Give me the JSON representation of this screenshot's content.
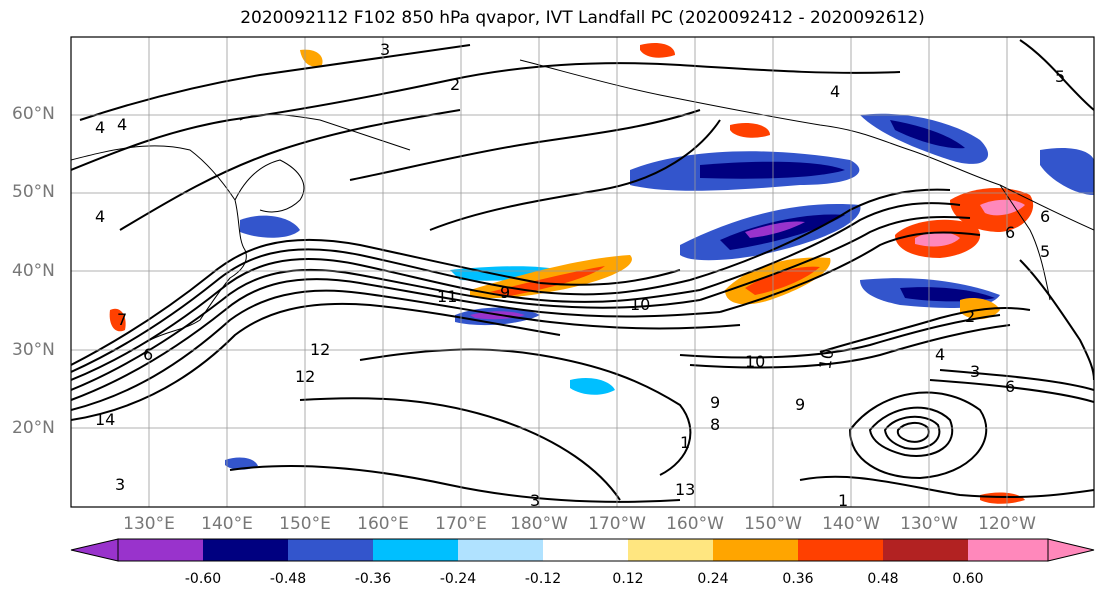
{
  "title": "2020092112 F102 850 hPa qvapor, IVT Landfall PC (2020092412 - 2020092612)",
  "lat_labels": [
    "60°N",
    "50°N",
    "40°N",
    "30°N",
    "20°N"
  ],
  "lon_labels": [
    "130°E",
    "140°E",
    "150°E",
    "160°E",
    "170°E",
    "180°W",
    "170°W",
    "160°W",
    "150°W",
    "140°W",
    "130°W",
    "120°W"
  ],
  "contour_labels": [
    "3",
    "2",
    "4",
    "4",
    "5",
    "4",
    "4",
    "6",
    "5",
    "11",
    "9",
    "10",
    "10",
    "10",
    "12",
    "12",
    "6",
    "7",
    "14",
    "9",
    "9",
    "8",
    "3",
    "6",
    "13",
    "3",
    "1",
    "2",
    "4",
    "3",
    "6",
    "1"
  ],
  "colorbar": {
    "colors": [
      "#9933cc",
      "#000080",
      "#3355cc",
      "#00bfff",
      "#b0e2ff",
      "#ffffff",
      "#ffe680",
      "#ffa500",
      "#ff4000",
      "#b22222",
      "#ff88bb"
    ],
    "tick_labels": [
      "-0.60",
      "-0.48",
      "-0.36",
      "-0.24",
      "-0.12",
      "0.12",
      "0.24",
      "0.36",
      "0.48",
      "0.60"
    ]
  }
}
